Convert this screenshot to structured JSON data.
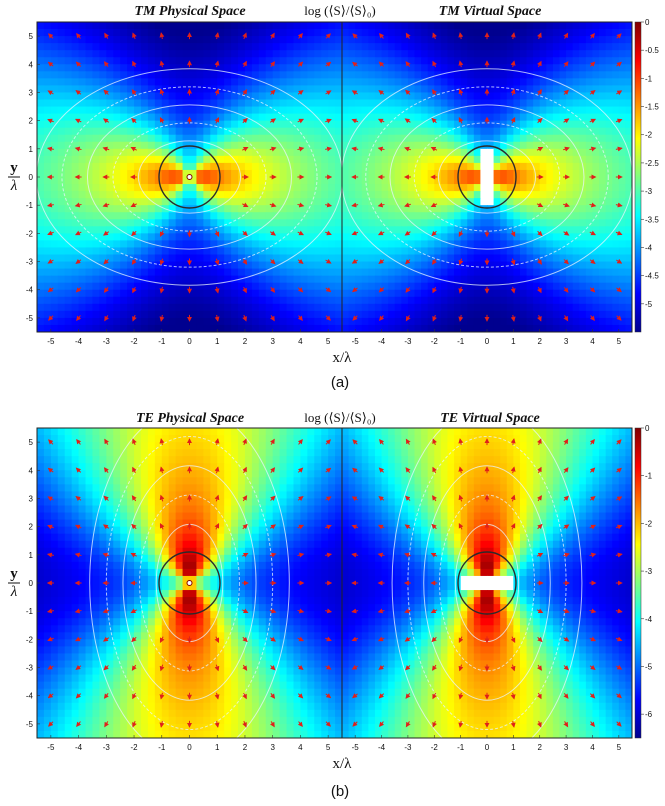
{
  "chart_data": [
    {
      "type": "heatmap",
      "panel_label": "(a)",
      "colorbar_label": "log (⟨S⟩/⟨S⟩₀)",
      "colorbar_range": [
        -5.5,
        0
      ],
      "colorbar_ticks": [
        "0",
        "-0.5",
        "-1",
        "-1.5",
        "-2",
        "-2.5",
        "-3",
        "-3.5",
        "-4",
        "-4.5",
        "-5"
      ],
      "colormap": [
        "#00008f",
        "#0000ff",
        "#0080ff",
        "#00ffff",
        "#80ff80",
        "#ffff00",
        "#ff8000",
        "#ff0000",
        "#800000"
      ],
      "xlabel": "x/λ",
      "ylabel": "y/λ",
      "xlim": [
        -5.5,
        5.5
      ],
      "ylim": [
        -5.5,
        5.5
      ],
      "x_ticks": [
        "-5",
        "-4",
        "-3",
        "-2",
        "-1",
        "0",
        "1",
        "2",
        "3",
        "4",
        "5"
      ],
      "y_ticks": [
        "5",
        "4",
        "3",
        "2",
        "1",
        "0",
        "-1",
        "-2",
        "-3",
        "-4",
        "-5"
      ],
      "subplots": [
        {
          "title": "TM Physical Space",
          "arrows": "Poynting vector field (red)",
          "circle_radius": 1.1
        },
        {
          "title": "TM Virtual Space",
          "arrows": "Poynting vector field (red)",
          "circle_radius": 1.1
        }
      ]
    },
    {
      "type": "heatmap",
      "panel_label": "(b)",
      "colorbar_label": "log (⟨S⟩/⟨S⟩₀)",
      "colorbar_range": [
        -6.5,
        0
      ],
      "colorbar_ticks": [
        "0",
        "-1",
        "-2",
        "-3",
        "-4",
        "-5",
        "-6"
      ],
      "colormap": [
        "#00008f",
        "#0000ff",
        "#0080ff",
        "#00ffff",
        "#80ff80",
        "#ffff00",
        "#ff8000",
        "#ff0000",
        "#800000"
      ],
      "xlabel": "x/λ",
      "ylabel": "y/λ",
      "xlim": [
        -5.5,
        5.5
      ],
      "ylim": [
        -5.5,
        5.5
      ],
      "x_ticks": [
        "-5",
        "-4",
        "-3",
        "-2",
        "-1",
        "0",
        "1",
        "2",
        "3",
        "4",
        "5"
      ],
      "y_ticks": [
        "5",
        "4",
        "3",
        "2",
        "1",
        "0",
        "-1",
        "-2",
        "-3",
        "-4",
        "-5"
      ],
      "subplots": [
        {
          "title": "TE Physical Space",
          "arrows": "Poynting vector field (red)",
          "circle_radius": 1.1
        },
        {
          "title": "TE Virtual Space",
          "arrows": "Poynting vector field (red)",
          "circle_radius": 1.1
        }
      ]
    }
  ]
}
